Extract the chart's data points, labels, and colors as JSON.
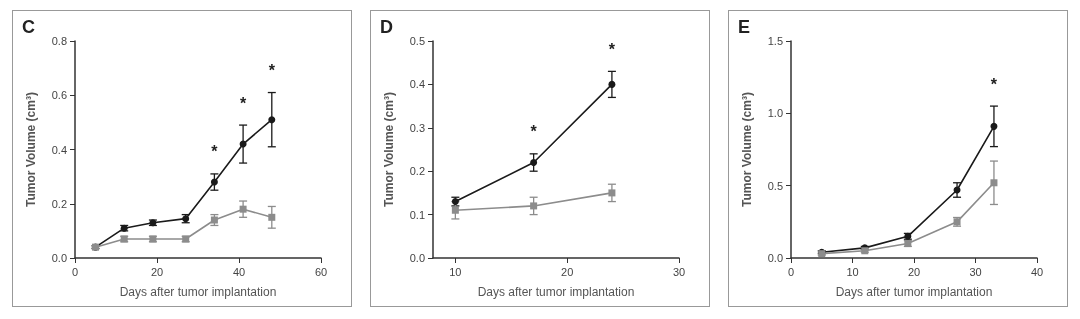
{
  "chart_data": [
    {
      "type": "line",
      "title": "C",
      "xlabel": "Days after tumor implantation",
      "ylabel": "Tumor Volume (cm³)",
      "xlim": [
        0,
        60
      ],
      "xticks": [
        0,
        20,
        40,
        60
      ],
      "ylim": [
        0,
        0.8
      ],
      "yticks": [
        {
          "value": 0,
          "label": "0.0"
        },
        0.2,
        0.4,
        0.6,
        0.8
      ],
      "grid": false,
      "series": [
        {
          "color": "#1a1a1a",
          "marker": "circle",
          "x": [
            5,
            12,
            19,
            27,
            34,
            41,
            48
          ],
          "values": [
            0.04,
            0.11,
            0.13,
            0.145,
            0.28,
            0.42,
            0.51
          ],
          "errors": [
            0.005,
            0.01,
            0.01,
            0.015,
            0.03,
            0.07,
            0.1
          ]
        },
        {
          "color": "#8c8c8c",
          "marker": "square",
          "x": [
            5,
            12,
            19,
            27,
            34,
            41,
            48
          ],
          "values": [
            0.04,
            0.07,
            0.07,
            0.07,
            0.14,
            0.18,
            0.15
          ],
          "errors": [
            0.005,
            0.01,
            0.01,
            0.01,
            0.02,
            0.03,
            0.04
          ]
        }
      ],
      "annotations": [
        {
          "text": "*",
          "x": 34,
          "y": 0.28
        },
        {
          "text": "*",
          "x": 41,
          "y": 0.42
        },
        {
          "text": "*",
          "x": 48,
          "y": 0.51
        }
      ]
    },
    {
      "type": "line",
      "title": "D",
      "xlabel": "Days after tumor implantation",
      "ylabel": "Tumor Volume (cm³)",
      "xlim": [
        8,
        30
      ],
      "xticks": [
        10,
        20,
        30
      ],
      "ylim": [
        0,
        0.5
      ],
      "yticks": [
        {
          "value": 0,
          "label": "0.0"
        },
        0.1,
        0.2,
        0.3,
        0.4,
        0.5
      ],
      "grid": false,
      "series": [
        {
          "color": "#1a1a1a",
          "marker": "circle",
          "x": [
            10,
            17,
            24
          ],
          "values": [
            0.13,
            0.22,
            0.4
          ],
          "errors": [
            0.01,
            0.02,
            0.03
          ]
        },
        {
          "color": "#8c8c8c",
          "marker": "square",
          "x": [
            10,
            17,
            24
          ],
          "values": [
            0.11,
            0.12,
            0.15
          ],
          "errors": [
            0.02,
            0.02,
            0.02
          ]
        }
      ],
      "annotations": [
        {
          "text": "*",
          "x": 17,
          "y": 0.22
        },
        {
          "text": "*",
          "x": 24,
          "y": 0.4
        }
      ]
    },
    {
      "type": "line",
      "title": "E",
      "xlabel": "Days after tumor implantation",
      "ylabel": "Tumor Volume (cm³)",
      "xlim": [
        0,
        40
      ],
      "xticks": [
        0,
        10,
        20,
        30,
        40
      ],
      "ylim": [
        0,
        1.5
      ],
      "yticks": [
        {
          "value": 0,
          "label": "0.0"
        },
        {
          "value": 0.5,
          "label": "0.5"
        },
        {
          "value": 1,
          "label": "1.0"
        },
        {
          "value": 1.5,
          "label": "1.5"
        }
      ],
      "grid": false,
      "series": [
        {
          "color": "#1a1a1a",
          "marker": "circle",
          "x": [
            5,
            12,
            19,
            27,
            33
          ],
          "values": [
            0.04,
            0.07,
            0.15,
            0.47,
            0.91
          ],
          "errors": [
            0.01,
            0.01,
            0.02,
            0.05,
            0.14
          ]
        },
        {
          "color": "#8c8c8c",
          "marker": "square",
          "x": [
            5,
            12,
            19,
            27,
            33
          ],
          "values": [
            0.03,
            0.05,
            0.1,
            0.25,
            0.52
          ],
          "errors": [
            0.01,
            0.01,
            0.02,
            0.03,
            0.15
          ]
        }
      ],
      "annotations": [
        {
          "text": "*",
          "x": 33,
          "y": 0.91
        }
      ]
    }
  ]
}
